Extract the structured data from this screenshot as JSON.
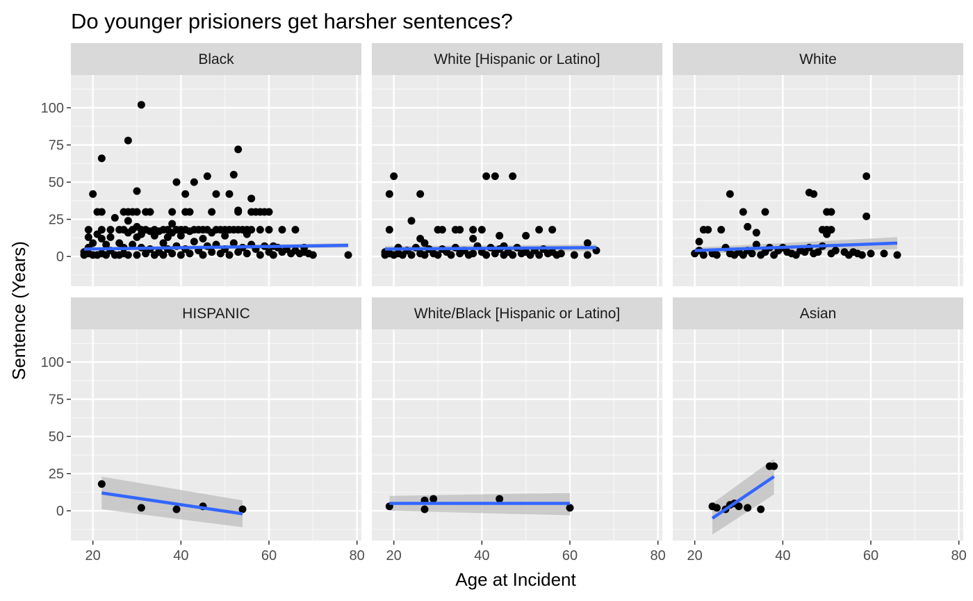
{
  "chart_data": {
    "type": "scatter",
    "title": "Do younger prisioners get harsher sentences?",
    "xlabel": "Age at Incident",
    "ylabel": "Sentence (Years)",
    "xlim": [
      15,
      81
    ],
    "ylim": [
      -20,
      122
    ],
    "x_ticks": [
      20,
      40,
      60,
      80
    ],
    "y_ticks": [
      0,
      25,
      50,
      75,
      100
    ],
    "grid": true,
    "facet_layout": "2 rows x 3 columns",
    "point_color": "#000000",
    "line_color": "#3366FF",
    "band_color": "#BEBEBE",
    "panel_bg": "#EBEBEB",
    "strip_bg": "#D9D9D9",
    "panels": [
      {
        "name": "Black",
        "trend": {
          "x": [
            18,
            78
          ],
          "y": [
            5,
            7.5
          ],
          "band": [
            [
              18,
              4,
              6
            ],
            [
              78,
              6,
              9
            ]
          ]
        },
        "points": [
          [
            18,
            1
          ],
          [
            18,
            3
          ],
          [
            19,
            2
          ],
          [
            19,
            13
          ],
          [
            19,
            18
          ],
          [
            20,
            42
          ],
          [
            19,
            6
          ],
          [
            20,
            1
          ],
          [
            20,
            9
          ],
          [
            21,
            15
          ],
          [
            21,
            1
          ],
          [
            21,
            30
          ],
          [
            22,
            66
          ],
          [
            22,
            30
          ],
          [
            22,
            18
          ],
          [
            22,
            12
          ],
          [
            22,
            2
          ],
          [
            23,
            8
          ],
          [
            23,
            1
          ],
          [
            24,
            18
          ],
          [
            24,
            13
          ],
          [
            24,
            4
          ],
          [
            25,
            26
          ],
          [
            25,
            1
          ],
          [
            26,
            18
          ],
          [
            26,
            9
          ],
          [
            26,
            1
          ],
          [
            27,
            30
          ],
          [
            27,
            18
          ],
          [
            27,
            6
          ],
          [
            27,
            2
          ],
          [
            28,
            78
          ],
          [
            28,
            24
          ],
          [
            28,
            30
          ],
          [
            28,
            16
          ],
          [
            28,
            1
          ],
          [
            29,
            30
          ],
          [
            29,
            18
          ],
          [
            29,
            8
          ],
          [
            30,
            44
          ],
          [
            30,
            20
          ],
          [
            30,
            30
          ],
          [
            30,
            13
          ],
          [
            30,
            1
          ],
          [
            31,
            102
          ],
          [
            31,
            18
          ],
          [
            31,
            15
          ],
          [
            31,
            6
          ],
          [
            32,
            30
          ],
          [
            32,
            18
          ],
          [
            32,
            2
          ],
          [
            33,
            30
          ],
          [
            33,
            17
          ],
          [
            33,
            5
          ],
          [
            34,
            18
          ],
          [
            34,
            14
          ],
          [
            34,
            1
          ],
          [
            35,
            17
          ],
          [
            35,
            3
          ],
          [
            36,
            18
          ],
          [
            36,
            9
          ],
          [
            36,
            1
          ],
          [
            37,
            18
          ],
          [
            37,
            13
          ],
          [
            37,
            5
          ],
          [
            38,
            30
          ],
          [
            38,
            22
          ],
          [
            38,
            16
          ],
          [
            38,
            2
          ],
          [
            39,
            50
          ],
          [
            39,
            18
          ],
          [
            39,
            7
          ],
          [
            40,
            18
          ],
          [
            40,
            14
          ],
          [
            40,
            1
          ],
          [
            41,
            42
          ],
          [
            41,
            30
          ],
          [
            41,
            18
          ],
          [
            41,
            5
          ],
          [
            42,
            30
          ],
          [
            42,
            17
          ],
          [
            42,
            2
          ],
          [
            43,
            50
          ],
          [
            43,
            18
          ],
          [
            43,
            10
          ],
          [
            44,
            18
          ],
          [
            44,
            4
          ],
          [
            45,
            18
          ],
          [
            45,
            12
          ],
          [
            45,
            1
          ],
          [
            46,
            54
          ],
          [
            46,
            18
          ],
          [
            46,
            7
          ],
          [
            47,
            30
          ],
          [
            47,
            16
          ],
          [
            47,
            3
          ],
          [
            48,
            18
          ],
          [
            48,
            42
          ],
          [
            48,
            8
          ],
          [
            49,
            18
          ],
          [
            49,
            2
          ],
          [
            50,
            18
          ],
          [
            50,
            14
          ],
          [
            50,
            5
          ],
          [
            51,
            42
          ],
          [
            51,
            18
          ],
          [
            51,
            1
          ],
          [
            52,
            55
          ],
          [
            52,
            18
          ],
          [
            52,
            9
          ],
          [
            53,
            72
          ],
          [
            53,
            31
          ],
          [
            53,
            30
          ],
          [
            53,
            18
          ],
          [
            53,
            3
          ],
          [
            54,
            18
          ],
          [
            54,
            6
          ],
          [
            55,
            18
          ],
          [
            55,
            15
          ],
          [
            55,
            2
          ],
          [
            56,
            39
          ],
          [
            56,
            30
          ],
          [
            56,
            18
          ],
          [
            56,
            8
          ],
          [
            57,
            30
          ],
          [
            57,
            5
          ],
          [
            58,
            30
          ],
          [
            58,
            18
          ],
          [
            58,
            1
          ],
          [
            59,
            30
          ],
          [
            59,
            7
          ],
          [
            60,
            30
          ],
          [
            60,
            18
          ],
          [
            60,
            3
          ],
          [
            61,
            7
          ],
          [
            61,
            1
          ],
          [
            62,
            6
          ],
          [
            63,
            18
          ],
          [
            63,
            3
          ],
          [
            64,
            5
          ],
          [
            65,
            2
          ],
          [
            66,
            18
          ],
          [
            66,
            4
          ],
          [
            67,
            2
          ],
          [
            68,
            6
          ],
          [
            68,
            3
          ],
          [
            69,
            2
          ],
          [
            70,
            1
          ],
          [
            78,
            1
          ]
        ]
      },
      {
        "name": "White [Hispanic or Latino]",
        "trend": {
          "x": [
            18,
            66
          ],
          "y": [
            5,
            6
          ],
          "band": [
            [
              18,
              3.5,
              7
            ],
            [
              66,
              3.5,
              8
            ]
          ]
        },
        "points": [
          [
            18,
            1
          ],
          [
            18,
            3
          ],
          [
            19,
            42
          ],
          [
            19,
            18
          ],
          [
            19,
            2
          ],
          [
            20,
            54
          ],
          [
            20,
            1
          ],
          [
            21,
            6
          ],
          [
            21,
            2
          ],
          [
            22,
            1
          ],
          [
            23,
            4
          ],
          [
            24,
            24
          ],
          [
            24,
            1
          ],
          [
            25,
            6
          ],
          [
            26,
            42
          ],
          [
            26,
            12
          ],
          [
            26,
            2
          ],
          [
            27,
            9
          ],
          [
            27,
            1
          ],
          [
            28,
            5
          ],
          [
            29,
            2
          ],
          [
            30,
            18
          ],
          [
            30,
            1
          ],
          [
            31,
            18
          ],
          [
            31,
            5
          ],
          [
            32,
            3
          ],
          [
            33,
            1
          ],
          [
            34,
            18
          ],
          [
            34,
            6
          ],
          [
            35,
            18
          ],
          [
            35,
            2
          ],
          [
            36,
            4
          ],
          [
            37,
            1
          ],
          [
            38,
            18
          ],
          [
            38,
            12
          ],
          [
            38,
            2
          ],
          [
            39,
            7
          ],
          [
            40,
            18
          ],
          [
            40,
            3
          ],
          [
            41,
            54
          ],
          [
            41,
            1
          ],
          [
            42,
            6
          ],
          [
            43,
            54
          ],
          [
            43,
            2
          ],
          [
            44,
            14
          ],
          [
            44,
            5
          ],
          [
            45,
            7
          ],
          [
            45,
            1
          ],
          [
            46,
            3
          ],
          [
            47,
            54
          ],
          [
            47,
            1
          ],
          [
            48,
            6
          ],
          [
            49,
            2
          ],
          [
            50,
            14
          ],
          [
            50,
            3
          ],
          [
            51,
            1
          ],
          [
            52,
            4
          ],
          [
            53,
            18
          ],
          [
            53,
            1
          ],
          [
            54,
            5
          ],
          [
            55,
            2
          ],
          [
            56,
            18
          ],
          [
            56,
            3
          ],
          [
            57,
            1
          ],
          [
            58,
            2
          ],
          [
            61,
            1
          ],
          [
            64,
            9
          ],
          [
            64,
            1
          ],
          [
            66,
            4
          ]
        ]
      },
      {
        "name": "White",
        "trend": {
          "x": [
            20,
            66
          ],
          "y": [
            4,
            9
          ],
          "band": [
            [
              20,
              2,
              6
            ],
            [
              66,
              5,
              13
            ]
          ]
        },
        "points": [
          [
            20,
            2
          ],
          [
            21,
            10
          ],
          [
            21,
            4
          ],
          [
            22,
            18
          ],
          [
            22,
            1
          ],
          [
            23,
            18
          ],
          [
            24,
            2
          ],
          [
            25,
            1
          ],
          [
            26,
            18
          ],
          [
            27,
            6
          ],
          [
            28,
            42
          ],
          [
            28,
            2
          ],
          [
            29,
            1
          ],
          [
            30,
            3
          ],
          [
            31,
            30
          ],
          [
            31,
            1
          ],
          [
            32,
            20
          ],
          [
            32,
            4
          ],
          [
            33,
            2
          ],
          [
            34,
            16
          ],
          [
            34,
            8
          ],
          [
            35,
            1
          ],
          [
            36,
            30
          ],
          [
            36,
            3
          ],
          [
            37,
            6
          ],
          [
            38,
            1
          ],
          [
            39,
            4
          ],
          [
            40,
            6
          ],
          [
            41,
            3
          ],
          [
            42,
            2
          ],
          [
            43,
            1
          ],
          [
            44,
            4
          ],
          [
            45,
            3
          ],
          [
            46,
            43
          ],
          [
            46,
            6
          ],
          [
            47,
            42
          ],
          [
            47,
            2
          ],
          [
            48,
            3
          ],
          [
            49,
            18
          ],
          [
            49,
            7
          ],
          [
            50,
            30
          ],
          [
            50,
            18
          ],
          [
            50,
            15
          ],
          [
            51,
            30
          ],
          [
            51,
            18
          ],
          [
            51,
            2
          ],
          [
            52,
            4
          ],
          [
            54,
            3
          ],
          [
            55,
            1
          ],
          [
            56,
            3
          ],
          [
            57,
            2
          ],
          [
            58,
            1
          ],
          [
            59,
            54
          ],
          [
            59,
            27
          ],
          [
            60,
            2
          ],
          [
            63,
            2
          ],
          [
            66,
            1
          ]
        ]
      },
      {
        "name": "HISPANIC",
        "trend": {
          "x": [
            22,
            54
          ],
          "y": [
            12,
            -2
          ],
          "band": [
            [
              22,
              1,
              23
            ],
            [
              54,
              -11,
              7
            ]
          ]
        },
        "points": [
          [
            22,
            18
          ],
          [
            31,
            2
          ],
          [
            39,
            1
          ],
          [
            45,
            3
          ],
          [
            54,
            1
          ]
        ]
      },
      {
        "name": "White/Black [Hispanic or Latino]",
        "trend": {
          "x": [
            19,
            60
          ],
          "y": [
            5,
            5
          ],
          "band": [
            [
              19,
              0,
              10
            ],
            [
              60,
              -3,
              12
            ]
          ]
        },
        "points": [
          [
            19,
            3
          ],
          [
            27,
            7
          ],
          [
            27,
            1
          ],
          [
            29,
            8
          ],
          [
            44,
            8
          ],
          [
            60,
            2
          ]
        ]
      },
      {
        "name": "Asian",
        "trend": {
          "x": [
            24,
            38
          ],
          "y": [
            -5,
            23
          ],
          "band": [
            [
              24,
              -16,
              5
            ],
            [
              38,
              11,
              35
            ]
          ]
        },
        "points": [
          [
            24,
            3
          ],
          [
            25,
            2
          ],
          [
            27,
            1
          ],
          [
            28,
            4
          ],
          [
            29,
            5
          ],
          [
            30,
            3
          ],
          [
            32,
            2
          ],
          [
            35,
            1
          ],
          [
            37,
            30
          ],
          [
            38,
            30
          ]
        ]
      }
    ]
  }
}
